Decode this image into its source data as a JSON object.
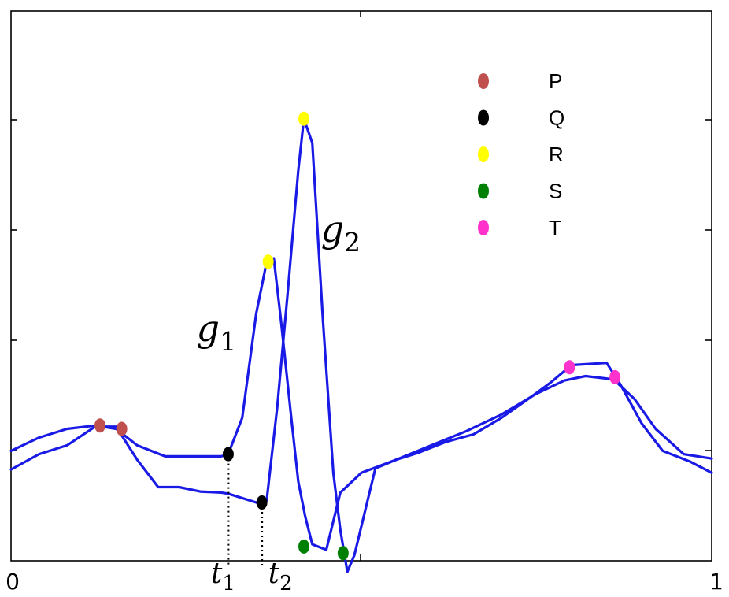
{
  "chart_data": {
    "type": "line",
    "title": "",
    "xlabel": "",
    "ylabel": "",
    "xlim": [
      0,
      1
    ],
    "ylim": [
      0,
      5
    ],
    "x_tick_labels": [
      "0",
      "1"
    ],
    "grid": false,
    "legend_position": "top-right",
    "legend": [
      {
        "label": "P",
        "color": "#c0504d"
      },
      {
        "label": "Q",
        "color": "#000000"
      },
      {
        "label": "R",
        "color": "#ffff00"
      },
      {
        "label": "S",
        "color": "#008000"
      },
      {
        "label": "T",
        "color": "#ff33cc"
      }
    ],
    "series": [
      {
        "line_color": "#1a1ae6",
        "points": [
          [
            0.0,
            0.83
          ],
          [
            0.04,
            0.97
          ],
          [
            0.08,
            1.05
          ],
          [
            0.12,
            1.22
          ],
          [
            0.15,
            1.22
          ],
          [
            0.18,
            0.92
          ],
          [
            0.21,
            0.67
          ],
          [
            0.24,
            0.67
          ],
          [
            0.27,
            0.63
          ],
          [
            0.3,
            0.62
          ],
          [
            0.31,
            0.61
          ],
          [
            0.36,
            0.51
          ],
          [
            0.365,
            0.55
          ],
          [
            0.38,
            1.4
          ],
          [
            0.395,
            2.45
          ],
          [
            0.41,
            3.55
          ],
          [
            0.418,
            4.02
          ],
          [
            0.43,
            3.8
          ],
          [
            0.445,
            2.2
          ],
          [
            0.46,
            0.8
          ],
          [
            0.47,
            0.28
          ],
          [
            0.48,
            -0.1
          ],
          [
            0.49,
            0.05
          ],
          [
            0.52,
            0.84
          ],
          [
            0.55,
            0.92
          ],
          [
            0.58,
            0.98
          ],
          [
            0.62,
            1.08
          ],
          [
            0.66,
            1.15
          ],
          [
            0.7,
            1.3
          ],
          [
            0.74,
            1.48
          ],
          [
            0.77,
            1.62
          ],
          [
            0.8,
            1.78
          ],
          [
            0.85,
            1.8
          ],
          [
            0.87,
            1.6
          ],
          [
            0.9,
            1.25
          ],
          [
            0.93,
            1.0
          ],
          [
            0.97,
            0.9
          ],
          [
            1.0,
            0.8
          ]
        ]
      },
      {
        "line_color": "#1a1ae6",
        "points": [
          [
            0.0,
            1.0
          ],
          [
            0.04,
            1.12
          ],
          [
            0.08,
            1.2
          ],
          [
            0.12,
            1.23
          ],
          [
            0.15,
            1.2
          ],
          [
            0.18,
            1.05
          ],
          [
            0.22,
            0.95
          ],
          [
            0.26,
            0.95
          ],
          [
            0.3,
            0.95
          ],
          [
            0.31,
            0.97
          ],
          [
            0.33,
            1.3
          ],
          [
            0.35,
            2.25
          ],
          [
            0.365,
            2.72
          ],
          [
            0.375,
            2.75
          ],
          [
            0.385,
            2.2
          ],
          [
            0.4,
            1.3
          ],
          [
            0.41,
            0.72
          ],
          [
            0.42,
            0.4
          ],
          [
            0.43,
            0.15
          ],
          [
            0.45,
            0.1
          ],
          [
            0.47,
            0.62
          ],
          [
            0.5,
            0.8
          ],
          [
            0.55,
            0.92
          ],
          [
            0.6,
            1.05
          ],
          [
            0.65,
            1.18
          ],
          [
            0.7,
            1.33
          ],
          [
            0.75,
            1.52
          ],
          [
            0.79,
            1.64
          ],
          [
            0.82,
            1.68
          ],
          [
            0.86,
            1.65
          ],
          [
            0.89,
            1.47
          ],
          [
            0.92,
            1.2
          ],
          [
            0.96,
            0.97
          ],
          [
            1.0,
            0.93
          ]
        ]
      }
    ],
    "markers": [
      {
        "label": "P",
        "color": "#c0504d",
        "x": 0.127,
        "y": 1.23
      },
      {
        "label": "P",
        "color": "#c0504d",
        "x": 0.158,
        "y": 1.2
      },
      {
        "label": "Q",
        "color": "#000000",
        "x": 0.31,
        "y": 0.97
      },
      {
        "label": "Q",
        "color": "#000000",
        "x": 0.358,
        "y": 0.53
      },
      {
        "label": "R",
        "color": "#ffff00",
        "x": 0.367,
        "y": 2.72
      },
      {
        "label": "R",
        "color": "#ffff00",
        "x": 0.418,
        "y": 4.02
      },
      {
        "label": "S",
        "color": "#008000",
        "x": 0.418,
        "y": 0.13
      },
      {
        "label": "S",
        "color": "#008000",
        "x": 0.474,
        "y": 0.07
      },
      {
        "label": "T",
        "color": "#ff33cc",
        "x": 0.797,
        "y": 1.76
      },
      {
        "label": "T",
        "color": "#ff33cc",
        "x": 0.862,
        "y": 1.67
      }
    ],
    "annotations": {
      "g1": {
        "base": "g",
        "sub": "1",
        "x": 0.285,
        "y": 2.0
      },
      "g2": {
        "base": "g",
        "sub": "2",
        "x": 0.44,
        "y": 2.9
      },
      "t1": {
        "base": "t",
        "sub": "1",
        "x": 0.31
      },
      "t2": {
        "base": "t",
        "sub": "2",
        "x": 0.358
      }
    }
  }
}
